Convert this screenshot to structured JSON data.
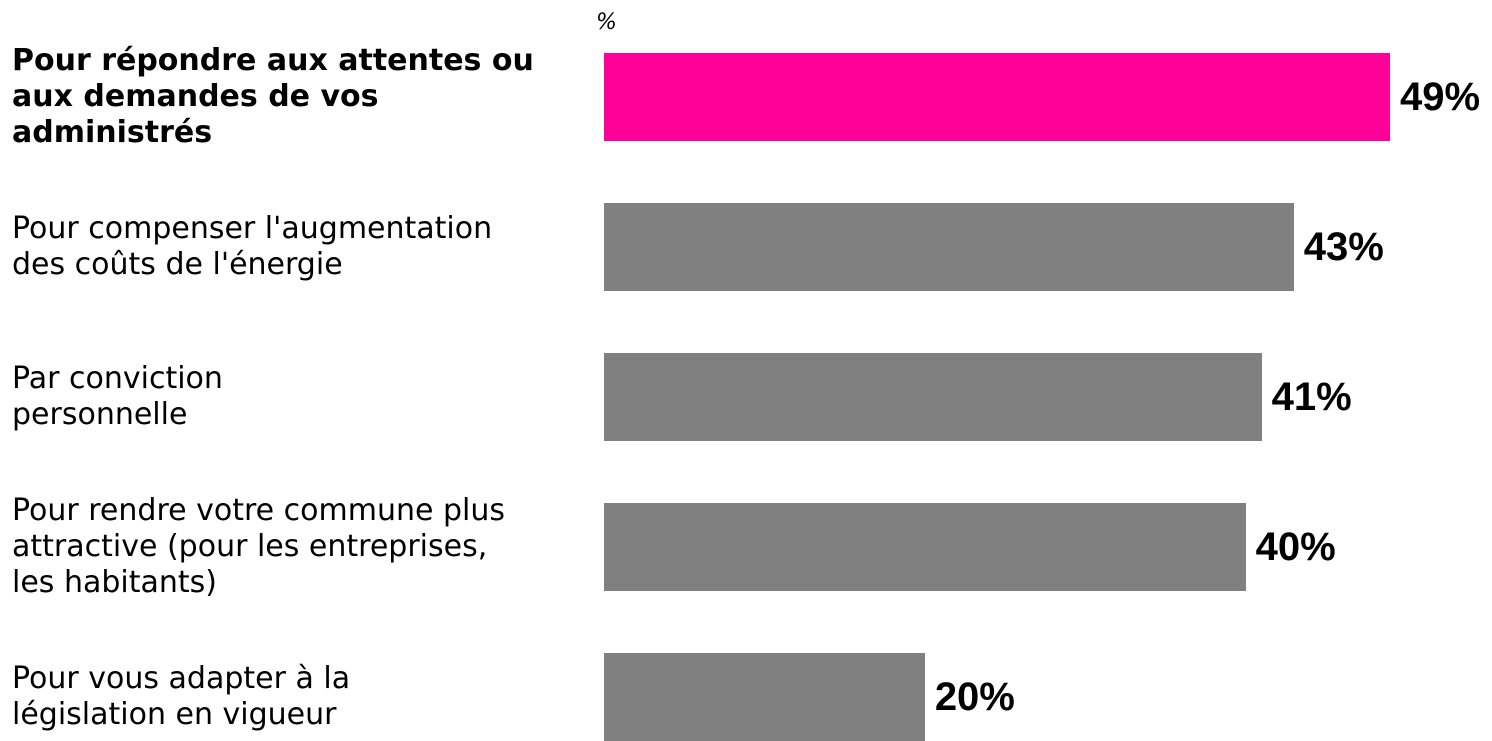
{
  "unit_label": "%",
  "colors": {
    "highlight": "#ff0099",
    "default": "#808080",
    "text": "#000000"
  },
  "chart_data": {
    "type": "bar",
    "orientation": "horizontal",
    "unit": "%",
    "xlim": [
      0,
      49
    ],
    "grid": false,
    "legend": "none",
    "categories": [
      [
        "Pour répondre aux attentes ou",
        "aux demandes de vos",
        "administrés"
      ],
      [
        "Pour compenser l'augmentation",
        "des coûts de l'énergie"
      ],
      [
        "Par conviction",
        "personnelle"
      ],
      [
        "Pour rendre votre commune plus",
        "attractive (pour les entreprises,",
        "les habitants)"
      ],
      [
        "Pour vous adapter à la",
        "législation en vigueur"
      ]
    ],
    "values": [
      49,
      43,
      41,
      40,
      20
    ],
    "value_labels": [
      "49%",
      "43%",
      "41%",
      "40%",
      "20%"
    ],
    "highlight_index": 0
  }
}
